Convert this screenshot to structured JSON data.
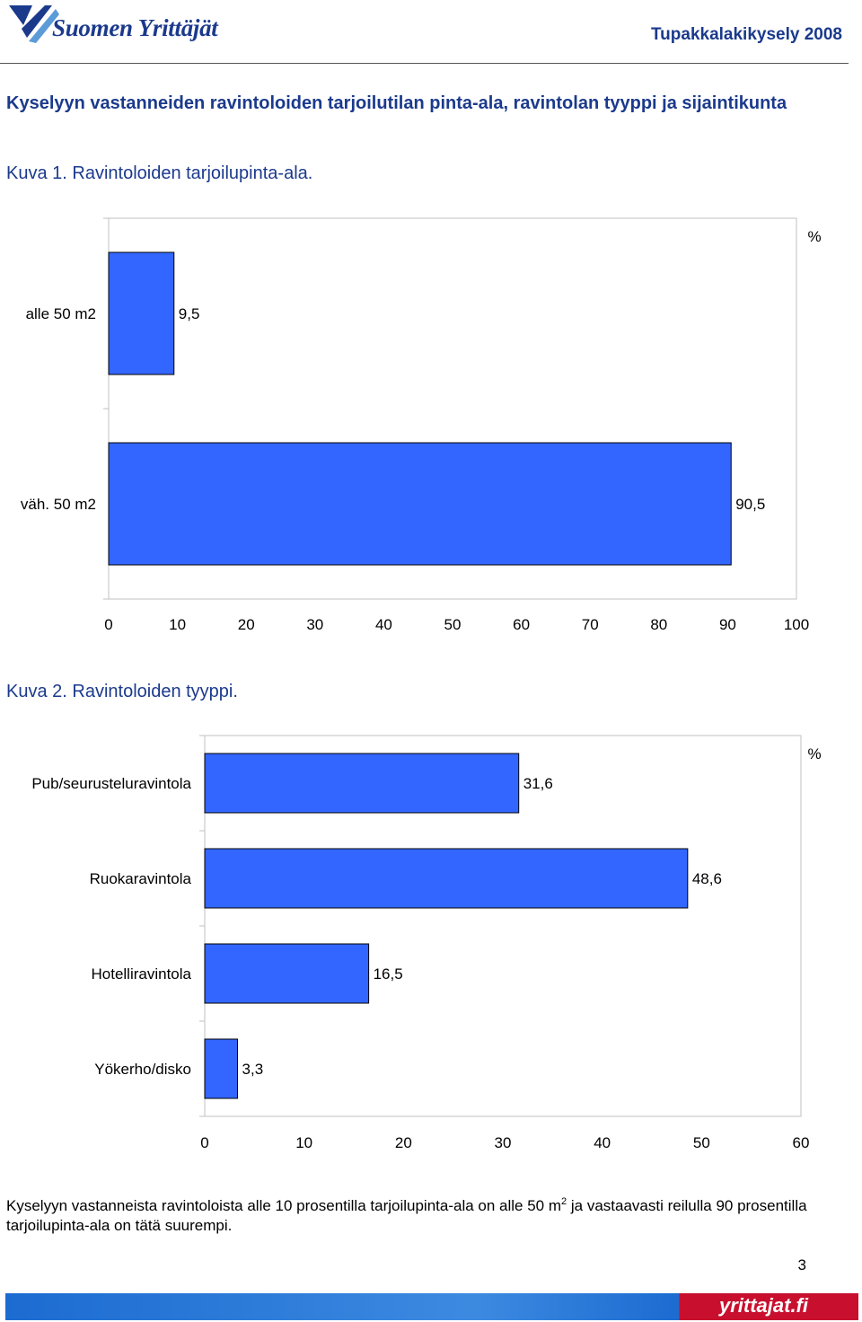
{
  "header": {
    "logo_text": "Suomen Yrittäjät",
    "survey_title": "Tupakkalakikysely 2008"
  },
  "section_heading": "Kyselyyn vastanneiden ravintoloiden tarjoilutilan pinta-ala, ravintolan tyyppi ja sijaintikunta",
  "colors": {
    "bar": "#3366ff",
    "text_blue": "#1b3a8c"
  },
  "chart_data": [
    {
      "type": "bar",
      "orientation": "horizontal",
      "caption": "Kuva 1. Ravintoloiden tarjoilupinta-ala.",
      "unit_label": "%",
      "categories": [
        "alle 50 m2",
        "väh. 50 m2"
      ],
      "values": [
        9.5,
        90.5
      ],
      "value_labels": [
        "9,5",
        "90,5"
      ],
      "xlim": [
        0,
        100
      ],
      "xticks": [
        "0",
        "10",
        "20",
        "30",
        "40",
        "50",
        "60",
        "70",
        "80",
        "90",
        "100"
      ],
      "grid": false,
      "legend": "none"
    },
    {
      "type": "bar",
      "orientation": "horizontal",
      "caption": "Kuva 2. Ravintoloiden tyyppi.",
      "unit_label": "%",
      "categories": [
        "Pub/seurusteluravintola",
        "Ruokaravintola",
        "Hotelliravintola",
        "Yökerho/disko"
      ],
      "values": [
        31.6,
        48.6,
        16.5,
        3.3
      ],
      "value_labels": [
        "31,6",
        "48,6",
        "16,5",
        "3,3"
      ],
      "xlim": [
        0,
        60
      ],
      "xticks": [
        "0",
        "10",
        "20",
        "30",
        "40",
        "50",
        "60"
      ],
      "grid": false,
      "legend": "none"
    }
  ],
  "body_text": {
    "part1": "Kyselyyn vastanneista ravintoloista alle 10 prosentilla tarjoilupinta-ala on alle 50 m",
    "sup": "2",
    "part2": " ja vastaavasti reilulla 90 prosentilla tarjoilupinta-ala on tätä suurempi."
  },
  "page_number": "3",
  "footer": {
    "brand": "yrittajat.fi"
  }
}
